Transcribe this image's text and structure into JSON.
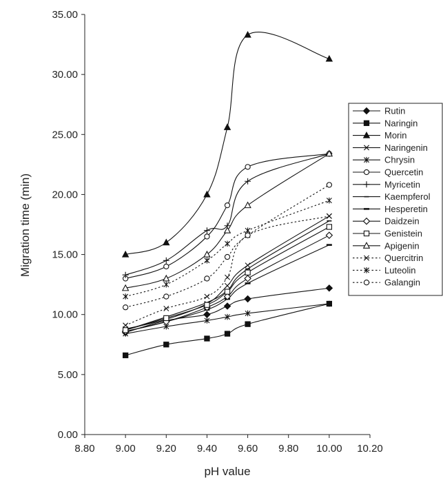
{
  "chart_data": {
    "type": "line",
    "title": "",
    "xlabel": "pH value",
    "ylabel": "Migration time (min)",
    "xlim": [
      8.8,
      10.2
    ],
    "ylim": [
      0,
      35
    ],
    "x_ticks": [
      "8.80",
      "9.00",
      "9.20",
      "9.40",
      "9.60",
      "9.80",
      "10.00",
      "10.20"
    ],
    "y_ticks": [
      "0.00",
      "5.00",
      "10.00",
      "15.00",
      "20.00",
      "25.00",
      "30.00",
      "35.00"
    ],
    "grid": false,
    "legend_position": "right",
    "x": [
      9.0,
      9.2,
      9.4,
      9.5,
      9.6,
      10.0
    ],
    "series": [
      {
        "name": "Rutin",
        "marker": "diamond-filled",
        "dash": "solid",
        "values": [
          8.5,
          9.5,
          10.0,
          10.7,
          11.3,
          12.2
        ]
      },
      {
        "name": "Naringin",
        "marker": "square-filled",
        "dash": "solid",
        "values": [
          6.6,
          7.5,
          8.0,
          8.4,
          9.2,
          10.9
        ]
      },
      {
        "name": "Morin",
        "marker": "triangle-filled",
        "dash": "solid",
        "values": [
          15.0,
          16.0,
          20.0,
          25.6,
          33.3,
          31.3
        ]
      },
      {
        "name": "Naringenin",
        "marker": "x",
        "dash": "solid",
        "values": [
          8.8,
          9.6,
          10.9,
          12.4,
          14.1,
          18.2
        ]
      },
      {
        "name": "Chrysin",
        "marker": "asterisk",
        "dash": "solid",
        "values": [
          8.4,
          9.0,
          9.5,
          9.8,
          10.1,
          10.9
        ]
      },
      {
        "name": "Quercetin",
        "marker": "circle-open",
        "dash": "solid",
        "values": [
          13.0,
          14.0,
          16.5,
          19.1,
          22.3,
          23.4
        ]
      },
      {
        "name": "Myricetin",
        "marker": "plus",
        "dash": "solid",
        "values": [
          13.3,
          14.5,
          17.0,
          17.4,
          21.1,
          23.4
        ]
      },
      {
        "name": "Kaempferol",
        "marker": "dash",
        "dash": "solid",
        "values": [
          8.7,
          9.8,
          11.0,
          12.0,
          13.8,
          17.8
        ]
      },
      {
        "name": "Hesperetin",
        "marker": "dash-thick",
        "dash": "solid",
        "values": [
          8.6,
          9.4,
          10.4,
          11.3,
          12.6,
          15.8
        ]
      },
      {
        "name": "Daidzein",
        "marker": "diamond-open",
        "dash": "solid",
        "values": [
          8.6,
          9.4,
          10.6,
          11.5,
          13.0,
          16.6
        ]
      },
      {
        "name": "Genistein",
        "marker": "square-open",
        "dash": "solid",
        "values": [
          8.7,
          9.7,
          10.8,
          11.9,
          13.5,
          17.3
        ]
      },
      {
        "name": "Apigenin",
        "marker": "triangle-open",
        "dash": "solid",
        "values": [
          12.2,
          13.0,
          15.0,
          17.0,
          19.1,
          23.4
        ]
      },
      {
        "name": "Quercitrin",
        "marker": "x",
        "dash": "dotted",
        "values": [
          9.1,
          10.5,
          11.5,
          13.1,
          16.6,
          18.2
        ]
      },
      {
        "name": "Luteolin",
        "marker": "asterisk",
        "dash": "dotted",
        "values": [
          11.5,
          12.5,
          14.5,
          15.9,
          17.0,
          19.5
        ]
      },
      {
        "name": "Galangin",
        "marker": "circle-open",
        "dash": "dotted",
        "values": [
          10.6,
          11.5,
          13.0,
          14.8,
          16.6,
          20.8
        ]
      }
    ]
  }
}
